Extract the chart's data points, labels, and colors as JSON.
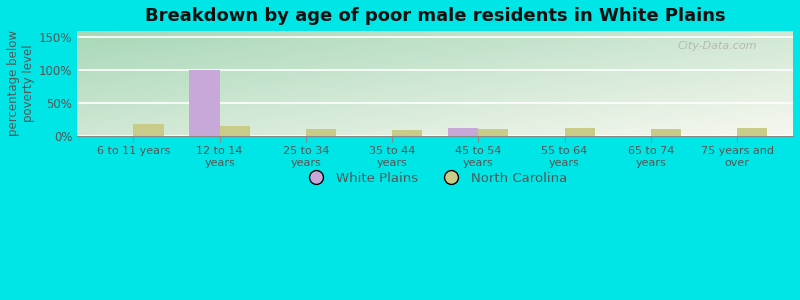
{
  "title": "Breakdown by age of poor male residents in White Plains",
  "categories": [
    "6 to 11 years",
    "12 to 14\nyears",
    "25 to 34\nyears",
    "35 to 44\nyears",
    "45 to 54\nyears",
    "55 to 64\nyears",
    "65 to 74\nyears",
    "75 years and\nover"
  ],
  "white_plains": [
    0,
    100,
    0,
    0,
    12,
    0,
    0,
    0
  ],
  "north_carolina": [
    18,
    15,
    10,
    9,
    10,
    12,
    10,
    11
  ],
  "wp_color": "#c8a8d8",
  "nc_color": "#c8cc88",
  "ylabel": "percentage below\npoverty level",
  "ylim": [
    0,
    160
  ],
  "yticks": [
    0,
    50,
    100,
    150
  ],
  "ytick_labels": [
    "0%",
    "50%",
    "100%",
    "150%"
  ],
  "bar_width": 0.35,
  "legend_labels": [
    "White Plains",
    "North Carolina"
  ],
  "watermark": "City-Data.com",
  "outer_bg": "#00e5e5",
  "plot_bg_left": "#a8d8b8",
  "plot_bg_right": "#f0f5e8"
}
